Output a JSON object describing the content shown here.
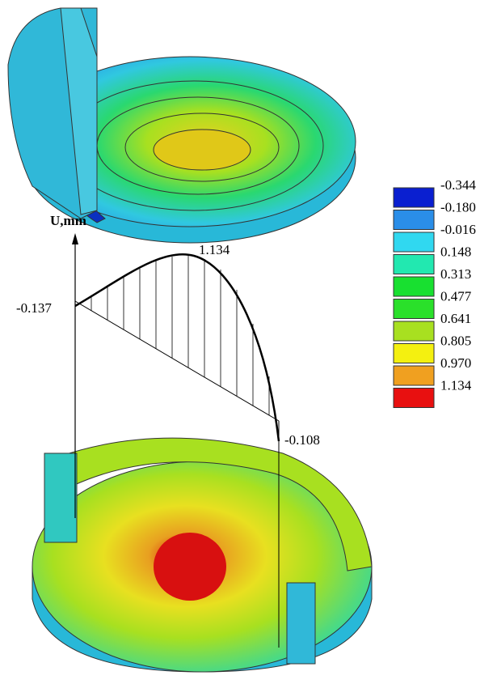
{
  "plot": {
    "axis_label": "U,mm",
    "start_label": "-0.137",
    "peak_label": "1.134",
    "end_label": "-0.108"
  },
  "legend": {
    "items": [
      {
        "label": "-0.344",
        "color": "#0a1fd0"
      },
      {
        "label": "-0.180",
        "color": "#2a8ee8"
      },
      {
        "label": "-0.016",
        "color": "#30d8f0"
      },
      {
        "label": "0.148",
        "color": "#22e8b0"
      },
      {
        "label": "0.313",
        "color": "#18e030"
      },
      {
        "label": "0.477",
        "color": "#2ae02a"
      },
      {
        "label": "0.641",
        "color": "#a8e020"
      },
      {
        "label": "0.805",
        "color": "#f4f010"
      },
      {
        "label": "0.970",
        "color": "#f0a020"
      },
      {
        "label": "1.134",
        "color": "#e81010"
      }
    ]
  }
}
